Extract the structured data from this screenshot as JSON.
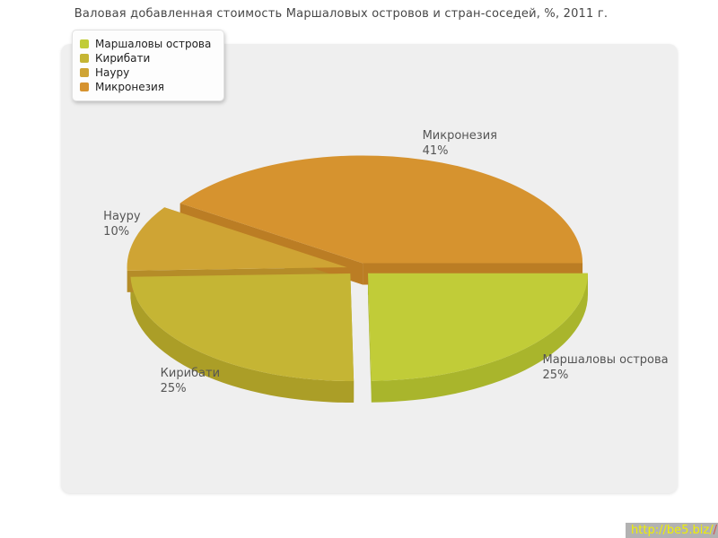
{
  "page": {
    "watermark": {
      "text": "http://be5.biz",
      "trailing_slash": "/",
      "accent_slash": "/",
      "bg": "#b2b2b2",
      "fg": "#f0f000",
      "accent": "#cc5050"
    }
  },
  "chart_data": {
    "type": "pie",
    "style": "3d-exploded",
    "title": "Валовая добавленная стоимость Маршаловых островов и стран-соседей, %, 2011 г.",
    "unit": "%",
    "legend_position": "top-left",
    "labels_format": "name + percent",
    "series": [
      {
        "name": "Маршаловы острова",
        "value": 25,
        "percent_label": "25%",
        "color": "#c1cc38",
        "shade": "#a9b52c"
      },
      {
        "name": "Кирибати",
        "value": 25,
        "percent_label": "25%",
        "color": "#c5b534",
        "shade": "#ab9e27"
      },
      {
        "name": "Науру",
        "value": 10,
        "percent_label": "10%",
        "color": "#cfa434",
        "shade": "#b58c28"
      },
      {
        "name": "Микронезия",
        "value": 41,
        "percent_label": "41%",
        "color": "#d6932f",
        "shade": "#bb7d24"
      }
    ]
  }
}
